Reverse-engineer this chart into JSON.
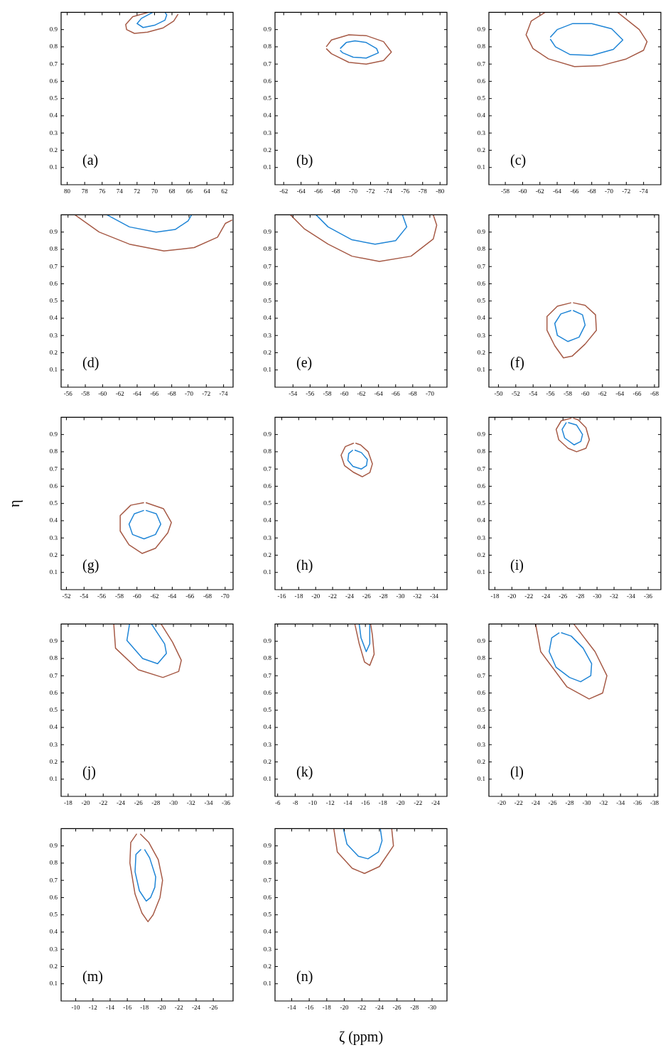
{
  "chart_data": [
    {
      "type": "line",
      "annotations": [
        "(a)"
      ],
      "marker": "none",
      "grid": false,
      "legend": false,
      "xlim": [
        80.7,
        61
      ],
      "ylim": [
        0,
        1
      ],
      "xticks": [
        80,
        78,
        76,
        74,
        72,
        70,
        68,
        66,
        64,
        62
      ],
      "yticks": [
        0.1,
        0.2,
        0.3,
        0.4,
        0.5,
        0.6,
        0.7,
        0.8,
        0.9
      ],
      "series": [
        {
          "color": "#a65a46",
          "x": [
            70.7,
            72.5,
            73.3,
            73.2,
            72.3,
            70.8,
            69,
            67.8,
            67.3
          ],
          "values": [
            1.0,
            0.975,
            0.93,
            0.9,
            0.878,
            0.885,
            0.91,
            0.95,
            0.99
          ]
        },
        {
          "color": "#1f85d6",
          "x": [
            70.2,
            71.5,
            72,
            71.3,
            70,
            68.8,
            68.6,
            68.8
          ],
          "values": [
            1.0,
            0.965,
            0.935,
            0.912,
            0.925,
            0.955,
            0.985,
            1.0
          ]
        }
      ]
    },
    {
      "type": "line",
      "annotations": [
        "(b)"
      ],
      "marker": "none",
      "grid": false,
      "legend": false,
      "xlim": [
        -61,
        -80.8
      ],
      "ylim": [
        0,
        1
      ],
      "xticks": [
        -62,
        -64,
        -66,
        -68,
        -70,
        -72,
        -74,
        -76,
        -78,
        -80
      ],
      "yticks": [
        0.1,
        0.2,
        0.3,
        0.4,
        0.5,
        0.6,
        0.7,
        0.8,
        0.9
      ],
      "series": [
        {
          "color": "#a65a46",
          "x": [
            -66.9,
            -67.5,
            -69.5,
            -71.5,
            -73.5,
            -74.4,
            -73.5,
            -71.5,
            -69.5,
            -67.5,
            -66.9
          ],
          "values": [
            0.8,
            0.84,
            0.87,
            0.865,
            0.83,
            0.77,
            0.72,
            0.7,
            0.71,
            0.76,
            0.79
          ]
        },
        {
          "color": "#1f85d6",
          "x": [
            -68.5,
            -69.2,
            -70.2,
            -71.5,
            -72.7,
            -72.9,
            -71.5,
            -70,
            -68.8,
            -68.5
          ],
          "values": [
            0.79,
            0.825,
            0.835,
            0.825,
            0.79,
            0.765,
            0.735,
            0.74,
            0.765,
            0.78
          ]
        }
      ]
    },
    {
      "type": "line",
      "annotations": [
        "(c)"
      ],
      "marker": "none",
      "grid": false,
      "legend": false,
      "xlim": [
        -56.1,
        -76
      ],
      "ylim": [
        0,
        1
      ],
      "xticks": [
        -58,
        -60,
        -62,
        -64,
        -66,
        -68,
        -70,
        -72,
        -74
      ],
      "yticks": [
        0.1,
        0.2,
        0.3,
        0.4,
        0.5,
        0.6,
        0.7,
        0.8,
        0.9
      ],
      "series": [
        {
          "color": "#a65a46",
          "x": [
            -62.6,
            -61,
            -60.4,
            -61.2,
            -63,
            -66,
            -69,
            -72,
            -74,
            -74.4,
            -73.5,
            -71
          ],
          "values": [
            1.0,
            0.95,
            0.87,
            0.79,
            0.73,
            0.685,
            0.69,
            0.73,
            0.78,
            0.83,
            0.9,
            1.0
          ]
        },
        {
          "color": "#1f85d6",
          "x": [
            -63.2,
            -64,
            -65.8,
            -68,
            -70.3,
            -71.6,
            -70.5,
            -68,
            -65.5,
            -63.8,
            -63.2
          ],
          "values": [
            0.855,
            0.9,
            0.935,
            0.935,
            0.905,
            0.84,
            0.785,
            0.75,
            0.755,
            0.8,
            0.845
          ]
        }
      ]
    },
    {
      "type": "line",
      "annotations": [
        "(d)"
      ],
      "marker": "none",
      "grid": false,
      "legend": false,
      "xlim": [
        -55.2,
        -75.1
      ],
      "ylim": [
        0,
        1
      ],
      "xticks": [
        -56,
        -58,
        -60,
        -62,
        -64,
        -66,
        -68,
        -70,
        -72,
        -74
      ],
      "yticks": [
        0.1,
        0.2,
        0.3,
        0.4,
        0.5,
        0.6,
        0.7,
        0.8,
        0.9
      ],
      "series": [
        {
          "color": "#a65a46",
          "x": [
            -56.8,
            -59.6,
            -63.1,
            -67.1,
            -70.6,
            -73.3,
            -74.2,
            -75
          ],
          "values": [
            1.0,
            0.9,
            0.83,
            0.79,
            0.81,
            0.87,
            0.95,
            0.97
          ]
        },
        {
          "color": "#1f85d6",
          "x": [
            -60.5,
            -63.1,
            -66.2,
            -68.4,
            -69.9,
            -70.3
          ],
          "values": [
            1.0,
            0.93,
            0.9,
            0.915,
            0.965,
            1.0
          ]
        }
      ]
    },
    {
      "type": "line",
      "annotations": [
        "(e)"
      ],
      "marker": "none",
      "grid": false,
      "legend": false,
      "xlim": [
        -51.9,
        -72
      ],
      "ylim": [
        0,
        1
      ],
      "xticks": [
        -54,
        -56,
        -58,
        -60,
        -62,
        -64,
        -66,
        -68,
        -70
      ],
      "yticks": [
        0.1,
        0.2,
        0.3,
        0.4,
        0.5,
        0.6,
        0.7,
        0.8,
        0.9
      ],
      "series": [
        {
          "color": "#a65a46",
          "x": [
            -53.7,
            -55.3,
            -58.1,
            -60.9,
            -64.1,
            -67.8,
            -70.4,
            -70.8,
            -70.4
          ],
          "values": [
            1.0,
            0.92,
            0.83,
            0.76,
            0.73,
            0.76,
            0.86,
            0.94,
            1.0
          ]
        },
        {
          "color": "#1f85d6",
          "x": [
            -56.7,
            -58.1,
            -60.9,
            -63.6,
            -66,
            -67.3,
            -66.8
          ],
          "values": [
            1.0,
            0.93,
            0.855,
            0.83,
            0.85,
            0.93,
            1.0
          ]
        }
      ]
    },
    {
      "type": "line",
      "annotations": [
        "(f)"
      ],
      "marker": "none",
      "grid": false,
      "legend": false,
      "xlim": [
        -48.9,
        -68.5
      ],
      "ylim": [
        0,
        1
      ],
      "xticks": [
        -50,
        -52,
        -54,
        -56,
        -58,
        -60,
        -62,
        -64,
        -66,
        -68
      ],
      "yticks": [
        0.1,
        0.2,
        0.3,
        0.4,
        0.5,
        0.6,
        0.7,
        0.8,
        0.9
      ],
      "series": [
        {
          "color": "#a65a46",
          "x": [
            -58.4,
            -56.8,
            -55.6,
            -55.6,
            -56.5,
            -57.5,
            -58.5,
            -60,
            -61.3,
            -61.2,
            -60,
            -58.6
          ],
          "values": [
            0.49,
            0.47,
            0.41,
            0.33,
            0.24,
            0.17,
            0.18,
            0.25,
            0.33,
            0.42,
            0.475,
            0.49
          ]
        },
        {
          "color": "#1f85d6",
          "x": [
            -58.4,
            -57.2,
            -56.5,
            -56.8,
            -58,
            -59.3,
            -60,
            -59.7,
            -58.6
          ],
          "values": [
            0.445,
            0.425,
            0.37,
            0.3,
            0.265,
            0.29,
            0.36,
            0.42,
            0.445
          ]
        }
      ]
    },
    {
      "type": "line",
      "annotations": [
        "(g)"
      ],
      "ylabel": "η",
      "marker": "none",
      "grid": false,
      "legend": false,
      "xlim": [
        -51.4,
        -70.9
      ],
      "ylim": [
        0,
        1
      ],
      "xticks": [
        -52,
        -54,
        -56,
        -58,
        -60,
        -62,
        -64,
        -66,
        -68,
        -70
      ],
      "yticks": [
        0.1,
        0.2,
        0.3,
        0.4,
        0.5,
        0.6,
        0.7,
        0.8,
        0.9
      ],
      "series": [
        {
          "color": "#a65a46",
          "x": [
            -60.8,
            -59.3,
            -58.1,
            -58.1,
            -59.1,
            -60.6,
            -62.1,
            -63.5,
            -63.9,
            -63,
            -61
          ],
          "values": [
            0.505,
            0.49,
            0.43,
            0.34,
            0.26,
            0.21,
            0.24,
            0.33,
            0.39,
            0.47,
            0.505
          ]
        },
        {
          "color": "#1f85d6",
          "x": [
            -60.8,
            -59.7,
            -59.1,
            -59.5,
            -60.8,
            -62.1,
            -62.7,
            -62.2,
            -61
          ],
          "values": [
            0.46,
            0.44,
            0.38,
            0.32,
            0.295,
            0.32,
            0.38,
            0.44,
            0.46
          ]
        }
      ]
    },
    {
      "type": "line",
      "annotations": [
        "(h)"
      ],
      "marker": "none",
      "grid": false,
      "legend": false,
      "xlim": [
        -15.2,
        -35.5
      ],
      "ylim": [
        0,
        1
      ],
      "xticks": [
        -16,
        -18,
        -20,
        -22,
        -24,
        -26,
        -28,
        -30,
        -32,
        -34
      ],
      "yticks": [
        0.1,
        0.2,
        0.3,
        0.4,
        0.5,
        0.6,
        0.7,
        0.8,
        0.9
      ],
      "series": [
        {
          "color": "#a65a46",
          "x": [
            -24.5,
            -23.5,
            -23,
            -23.4,
            -24.5,
            -25.5,
            -26.4,
            -26.7,
            -26.2,
            -25.3,
            -24.7
          ],
          "values": [
            0.85,
            0.83,
            0.78,
            0.72,
            0.68,
            0.655,
            0.68,
            0.73,
            0.8,
            0.84,
            0.85
          ]
        },
        {
          "color": "#1f85d6",
          "x": [
            -24.4,
            -23.9,
            -23.8,
            -24.4,
            -25.4,
            -26,
            -26.1,
            -25.4,
            -24.6
          ],
          "values": [
            0.81,
            0.79,
            0.75,
            0.715,
            0.7,
            0.72,
            0.755,
            0.795,
            0.81
          ]
        }
      ]
    },
    {
      "type": "line",
      "annotations": [
        "(i)"
      ],
      "marker": "none",
      "grid": false,
      "legend": false,
      "xlim": [
        -17.3,
        -37.5
      ],
      "ylim": [
        0,
        1
      ],
      "xticks": [
        -18,
        -20,
        -22,
        -24,
        -26,
        -28,
        -30,
        -32,
        -34,
        -36
      ],
      "yticks": [
        0.1,
        0.2,
        0.3,
        0.4,
        0.5,
        0.6,
        0.7,
        0.8,
        0.9
      ],
      "series": [
        {
          "color": "#a65a46",
          "x": [
            -27,
            -25.8,
            -25.2,
            -25.5,
            -26.6,
            -27.6,
            -28.7,
            -29.1,
            -28.7,
            -27.8,
            -27.2
          ],
          "values": [
            0.995,
            0.98,
            0.93,
            0.87,
            0.82,
            0.8,
            0.82,
            0.87,
            0.94,
            0.985,
            0.995
          ]
        },
        {
          "color": "#1f85d6",
          "x": [
            -26.4,
            -25.9,
            -26.2,
            -27.3,
            -28.1,
            -28.3,
            -27.6,
            -26.6
          ],
          "values": [
            0.97,
            0.93,
            0.88,
            0.84,
            0.86,
            0.9,
            0.955,
            0.97
          ]
        }
      ]
    },
    {
      "type": "line",
      "annotations": [
        "(j)"
      ],
      "marker": "none",
      "grid": false,
      "legend": false,
      "xlim": [
        -17.2,
        -36.8
      ],
      "ylim": [
        0,
        1
      ],
      "xticks": [
        -18,
        -20,
        -22,
        -24,
        -26,
        -28,
        -30,
        -32,
        -34,
        -36
      ],
      "yticks": [
        0.1,
        0.2,
        0.3,
        0.4,
        0.5,
        0.6,
        0.7,
        0.8,
        0.9
      ],
      "series": [
        {
          "color": "#a65a46",
          "x": [
            -23.2,
            -23.4,
            -26,
            -28.8,
            -30.6,
            -30.9,
            -29.9,
            -28.6
          ],
          "values": [
            1.0,
            0.86,
            0.735,
            0.69,
            0.725,
            0.79,
            0.895,
            1.0
          ]
        },
        {
          "color": "#1f85d6",
          "x": [
            -25,
            -24.7,
            -26.5,
            -28.2,
            -29.2,
            -29,
            -27.5
          ],
          "values": [
            1.0,
            0.905,
            0.8,
            0.77,
            0.83,
            0.885,
            1.0
          ]
        }
      ]
    },
    {
      "type": "line",
      "annotations": [
        "(k)"
      ],
      "marker": "none",
      "grid": false,
      "legend": false,
      "xlim": [
        -5.7,
        -25.3
      ],
      "ylim": [
        0,
        1
      ],
      "xticks": [
        -6,
        -8,
        -10,
        -12,
        -14,
        -16,
        -18,
        -20,
        -22,
        -24
      ],
      "yticks": [
        0.1,
        0.2,
        0.3,
        0.4,
        0.5,
        0.6,
        0.7,
        0.8,
        0.9
      ],
      "series": [
        {
          "color": "#a65a46",
          "x": [
            -14.8,
            -15.3,
            -15.9,
            -16.5,
            -17,
            -16.8,
            -16.6
          ],
          "values": [
            1.0,
            0.885,
            0.78,
            0.76,
            0.825,
            0.935,
            1.0
          ]
        },
        {
          "color": "#1f85d6",
          "x": [
            -15.3,
            -15.5,
            -16.1,
            -16.5,
            -16.5
          ],
          "values": [
            1.0,
            0.92,
            0.84,
            0.885,
            1.0
          ]
        }
      ]
    },
    {
      "type": "line",
      "annotations": [
        "(l)"
      ],
      "marker": "none",
      "grid": false,
      "legend": false,
      "xlim": [
        -18.5,
        -38.4
      ],
      "ylim": [
        0,
        1
      ],
      "xticks": [
        -20,
        -22,
        -24,
        -26,
        -28,
        -30,
        -32,
        -34,
        -36,
        -38
      ],
      "yticks": [
        0.1,
        0.2,
        0.3,
        0.4,
        0.5,
        0.6,
        0.7,
        0.8,
        0.9
      ],
      "series": [
        {
          "color": "#a65a46",
          "x": [
            -24,
            -24.6,
            -27.7,
            -30.3,
            -31.9,
            -32.4,
            -31,
            -28.5
          ],
          "values": [
            1.0,
            0.84,
            0.635,
            0.565,
            0.6,
            0.7,
            0.84,
            1.0
          ]
        },
        {
          "color": "#1f85d6",
          "x": [
            -26.8,
            -25.9,
            -25.6,
            -26.4,
            -28,
            -29.3,
            -30.5,
            -30.6,
            -29.6,
            -28.2,
            -27
          ],
          "values": [
            0.95,
            0.92,
            0.84,
            0.75,
            0.69,
            0.665,
            0.7,
            0.77,
            0.86,
            0.93,
            0.95
          ]
        }
      ]
    },
    {
      "type": "line",
      "annotations": [
        "(m)"
      ],
      "marker": "none",
      "grid": false,
      "legend": false,
      "xlim": [
        -8.3,
        -28.3
      ],
      "ylim": [
        0,
        1
      ],
      "xticks": [
        -10,
        -12,
        -14,
        -16,
        -18,
        -20,
        -22,
        -24,
        -26
      ],
      "yticks": [
        0.1,
        0.2,
        0.3,
        0.4,
        0.5,
        0.6,
        0.7,
        0.8,
        0.9
      ],
      "series": [
        {
          "color": "#a65a46",
          "x": [
            -17.1,
            -16.4,
            -16.3,
            -16.9,
            -17.7,
            -18.4,
            -19,
            -19.8,
            -20.1,
            -19.6,
            -18.5,
            -17.5
          ],
          "values": [
            0.97,
            0.92,
            0.8,
            0.62,
            0.51,
            0.46,
            0.5,
            0.6,
            0.7,
            0.82,
            0.92,
            0.97
          ]
        },
        {
          "color": "#1f85d6",
          "x": [
            -17.6,
            -17,
            -16.9,
            -17.4,
            -18.2,
            -18.7,
            -19.2,
            -19.3,
            -18.6,
            -18
          ],
          "values": [
            0.88,
            0.85,
            0.75,
            0.64,
            0.58,
            0.6,
            0.66,
            0.72,
            0.83,
            0.88
          ]
        }
      ]
    },
    {
      "type": "line",
      "annotations": [
        "(n)"
      ],
      "xlabel": "ζ (ppm)",
      "marker": "none",
      "grid": false,
      "legend": false,
      "xlim": [
        -12.1,
        -31.7
      ],
      "ylim": [
        0,
        1
      ],
      "xticks": [
        -14,
        -16,
        -18,
        -20,
        -22,
        -24,
        -26,
        -28,
        -30
      ],
      "yticks": [
        0.1,
        0.2,
        0.3,
        0.4,
        0.5,
        0.6,
        0.7,
        0.8,
        0.9
      ],
      "series": [
        {
          "color": "#a65a46",
          "x": [
            -18.8,
            -19.2,
            -20.9,
            -22.3,
            -24,
            -25.6,
            -25.4
          ],
          "values": [
            1.0,
            0.865,
            0.77,
            0.74,
            0.78,
            0.9,
            1.0
          ]
        },
        {
          "color": "#1f85d6",
          "x": [
            -19.9,
            -20.3,
            -21.6,
            -22.7,
            -23.9,
            -24.3,
            -24.1
          ],
          "values": [
            1.0,
            0.91,
            0.84,
            0.825,
            0.865,
            0.93,
            1.0
          ]
        }
      ]
    }
  ]
}
